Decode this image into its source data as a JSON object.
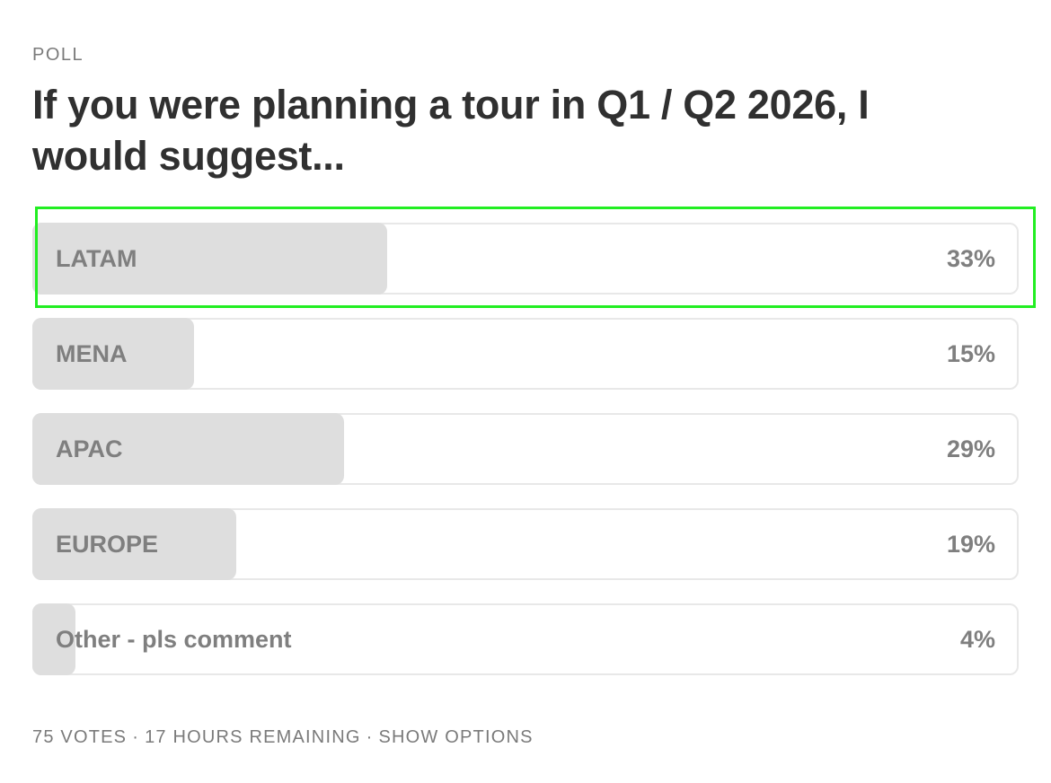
{
  "poll": {
    "label": "POLL",
    "question": "If you were planning a tour in Q1 / Q2 2026, I would suggest...",
    "options": [
      {
        "label": "LATAM",
        "percent_text": "33%",
        "fill_percent": 33
      },
      {
        "label": "MENA",
        "percent_text": "15%",
        "fill_percent": 15
      },
      {
        "label": "APAC",
        "percent_text": "29%",
        "fill_percent": 29
      },
      {
        "label": "EUROPE",
        "percent_text": "19%",
        "fill_percent": 19
      },
      {
        "label": "Other - pls comment",
        "percent_text": "4%",
        "fill_percent": 4
      }
    ],
    "highlighted_option_index": 0
  },
  "footer": {
    "votes": "75 VOTES",
    "separator": "·",
    "remaining": "17 HOURS REMAINING",
    "show_options": "SHOW OPTIONS"
  },
  "colors": {
    "fill": "#dedede",
    "border": "#e8e8e8",
    "highlight": "#22ee22",
    "muted_text": "#7f7f7f",
    "question_text": "#303030"
  }
}
